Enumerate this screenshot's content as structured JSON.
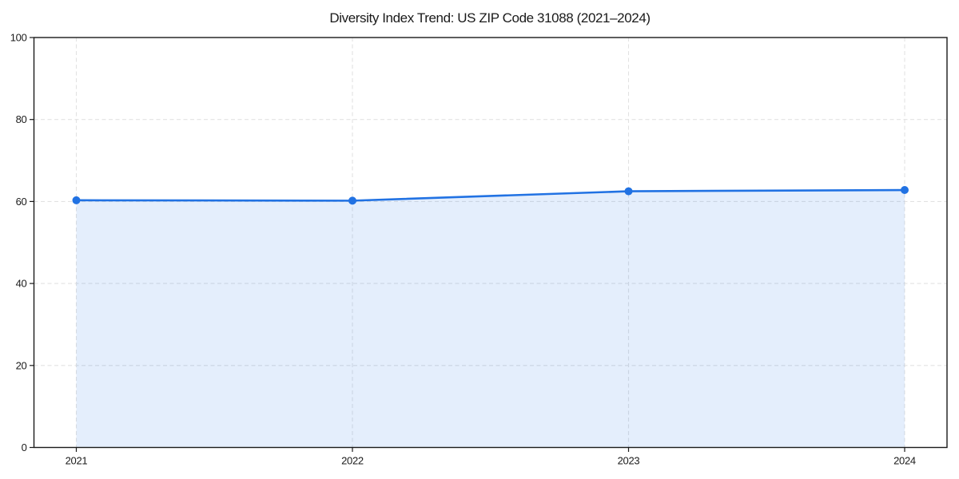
{
  "chart_data": {
    "type": "area",
    "title": "Diversity Index Trend: US ZIP Code 31088 (2021–2024)",
    "x": [
      2021,
      2022,
      2023,
      2024
    ],
    "series": [
      {
        "name": "Diversity Index",
        "values": [
          60.3,
          60.2,
          62.5,
          62.8
        ]
      }
    ],
    "xlabel": "",
    "ylabel": "",
    "xticks": [
      "2021",
      "2022",
      "2023",
      "2024"
    ],
    "yticks": [
      0,
      20,
      40,
      60,
      80,
      100
    ],
    "ylim": [
      0,
      100
    ],
    "grid": true,
    "grid_style": "dashed",
    "legend_position": "none",
    "marker": "circle",
    "colors": {
      "line": "#2172e3",
      "marker": "#2172e3",
      "fill": "rgba(33, 114, 227, 0.12)",
      "grid": "#e2e2e2",
      "axis": "#1a1a1a",
      "text": "#1a1a1a",
      "background": "#ffffff"
    }
  }
}
